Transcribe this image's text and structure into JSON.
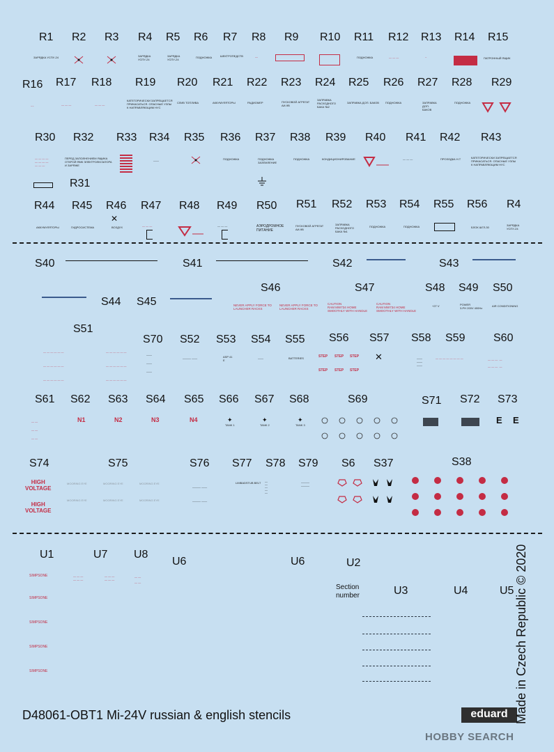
{
  "r_labels": {
    "r1": "R1",
    "r2": "R2",
    "r3": "R3",
    "r4": "R4",
    "r5": "R5",
    "r6": "R6",
    "r7": "R7",
    "r8": "R8",
    "r9": "R9",
    "r10": "R10",
    "r11": "R11",
    "r12": "R12",
    "r13": "R13",
    "r14": "R14",
    "r15": "R15",
    "r16": "R16",
    "r17": "R17",
    "r18": "R18",
    "r19": "R19",
    "r20": "R20",
    "r21": "R21",
    "r22": "R22",
    "r23": "R23",
    "r24": "R24",
    "r25": "R25",
    "r26": "R26",
    "r27": "R27",
    "r28": "R28",
    "r29": "R29",
    "r30": "R30",
    "r31": "R31",
    "r32": "R32",
    "r33": "R33",
    "r34": "R34",
    "r35": "R35",
    "r36": "R36",
    "r37": "R37",
    "r38": "R38",
    "r39": "R39",
    "r40": "R40",
    "r41": "R41",
    "r42": "R42",
    "r43": "R43",
    "r44": "R44",
    "r45": "R45",
    "r46": "R46",
    "r47": "R47",
    "r48": "R48",
    "r49": "R49",
    "r50": "R50",
    "r51": "R51",
    "r52": "R52",
    "r53": "R53",
    "r54": "R54",
    "r55": "R55",
    "r56": "R56",
    "r4b": "R4"
  },
  "s_labels": {
    "s40": "S40",
    "s41": "S41",
    "s42": "S42",
    "s43": "S43",
    "s44": "S44",
    "s45": "S45",
    "s46": "S46",
    "s47": "S47",
    "s48": "S48",
    "s49": "S49",
    "s50": "S50",
    "s51": "S51",
    "s70": "S70",
    "s52": "S52",
    "s53": "S53",
    "s54": "S54",
    "s55": "S55",
    "s56": "S56",
    "s57": "S57",
    "s58": "S58",
    "s59": "S59",
    "s60": "S60",
    "s61": "S61",
    "s62": "S62",
    "s63": "S63",
    "s64": "S64",
    "s65": "S65",
    "s66": "S66",
    "s67": "S67",
    "s68": "S68",
    "s69": "S69",
    "s71": "S71",
    "s72": "S72",
    "s73": "S73",
    "s74": "S74",
    "s75": "S75",
    "s76": "S76",
    "s77": "S77",
    "s78": "S78",
    "s79": "S79",
    "s6": "S6",
    "s37": "S37",
    "s38": "S38"
  },
  "u_labels": {
    "u1": "U1",
    "u7": "U7",
    "u8": "U8",
    "u6a": "U6",
    "u6b": "U6",
    "u2": "U2",
    "u3": "U3",
    "u4": "U4",
    "u5": "U5"
  },
  "u2_caption": "Section\nnumber",
  "stencils": {
    "r1": "ЗАРЯДКА УСПУ-24",
    "r5": "ЗАРЯДКА\nУСПУ-24",
    "r6": "ПОДНОЖКА",
    "r7": "ШЕКТРОПЕДСТВ",
    "r11": "ПОДНОЖКА",
    "r15": "ПАТРОННЫЙ ЯЩИК",
    "r19": "КАТЕГОРИЧЕСКИ ЗАПРЕЩАЕТСЯ\nПРИКАСАТЬСЯ. ОПАСНЫЕ УЗЛЫ\nК НАПРАВЛЯЮЩИМ НУС",
    "r20": "СЛИВ ТОПЛИВА",
    "r21": "АККУМУЛЯТОРЫ",
    "r22": "РАДИОМЕР",
    "r23": "ПУСКОВОЙ АГРЕГАТ\nАИ-9В",
    "r24": "ЗАПРАВКА\nРАСХОДНОГО\nБАКА №2",
    "r25": "ЗАПРАВКА ДОП. БАКОВ",
    "r26": "ПОДНОЖКА",
    "r27": "ЗАПРАВКА\nДОП.\nБАКОВ",
    "r28": "ПОДНОЖКА",
    "r32": "ПЕРЕД ЗАПОЛНЕНИЕМ ЯЩИКА\nОТКРОЙ ЯМК ЭЛЕКТРОЛЮЗАТОРА\nИ ЗАРЯЖЕ",
    "r36": "ПОДНОЖКА",
    "r37": "ПОДНОЖКА\nЗАЗЕМЛЕНИЕ",
    "r38": "ПОДНОЖКА",
    "r39": "КОНДИЦИОНИРОВАНИЕ",
    "r42": "ПРОЗОДКА Н.Т",
    "r43": "КАТЕГОРИЧЕСКИ ЗАПРЕЩАЕТСЯ\nПРИКАСАТЬСЯ. ОПАСНЫЕ УЗЛЫ\nК НАПРАВЛЯЮЩИМ НУС",
    "r44": "АККУМУЛЯТОРЫ",
    "r45": "ГИДРОСИСТЕМА",
    "r46": "ВОЗДУХ",
    "r50": "АЭРОДРОМНОЕ\nПИТАНИЕ",
    "r51": "ПУСКОВОЙ АГРЕГАТ\nАИ-9В",
    "r52": "ЗАПРАВКА\nРАСХОДНОГО\nБАКА №1",
    "r53": "ПОДНОЖКА",
    "r54": "ПОДНОЖКА",
    "r56": "БЛОК ШГЛ-30",
    "r4b": "ЗАРЯДКА\nУСПУ-24",
    "s46a": "NEVER APPLY FORCE TO\nLAUNCHER RACKS",
    "s46b": "NEVER APPLY FORCE TO\nLAUNCHER RACKS",
    "s47a": "CAUTION\nRAM MW734 HOME\nSMOOTHLY WITH HANDLE",
    "s47b": "CAUTION\nRAM MW734 HOME\nSMOOTHLY WITH HANDLE",
    "s48": "+27 V",
    "s49": "POWER\n3-PH 200V 400Hz",
    "s50": "AIR CONDITIONING",
    "s53": "ASP 41\nЕ",
    "s55": "BATTERIES",
    "s56": "STEP",
    "s74": "HIGH\nVOLTAGE",
    "s75": "MOORING EYE",
    "s77": "LIMBADSTUB BELT",
    "s62": "N1",
    "s63": "N2",
    "s64": "N3",
    "s65": "N4",
    "s66": "TANK 1",
    "s67": "TANK 2",
    "s68": "TANK 3",
    "u1": "SIMPSONE"
  },
  "footer": {
    "title": "D48061-OBT1 Mi-24V russian & english stencils",
    "brand": "eduard",
    "copyright": "Made in Czech Republic © 2020",
    "watermark": "HOBBY SEARCH"
  },
  "colors": {
    "background": "#c7dff1",
    "stencil_red": "#c42c44",
    "text": "#111111"
  }
}
